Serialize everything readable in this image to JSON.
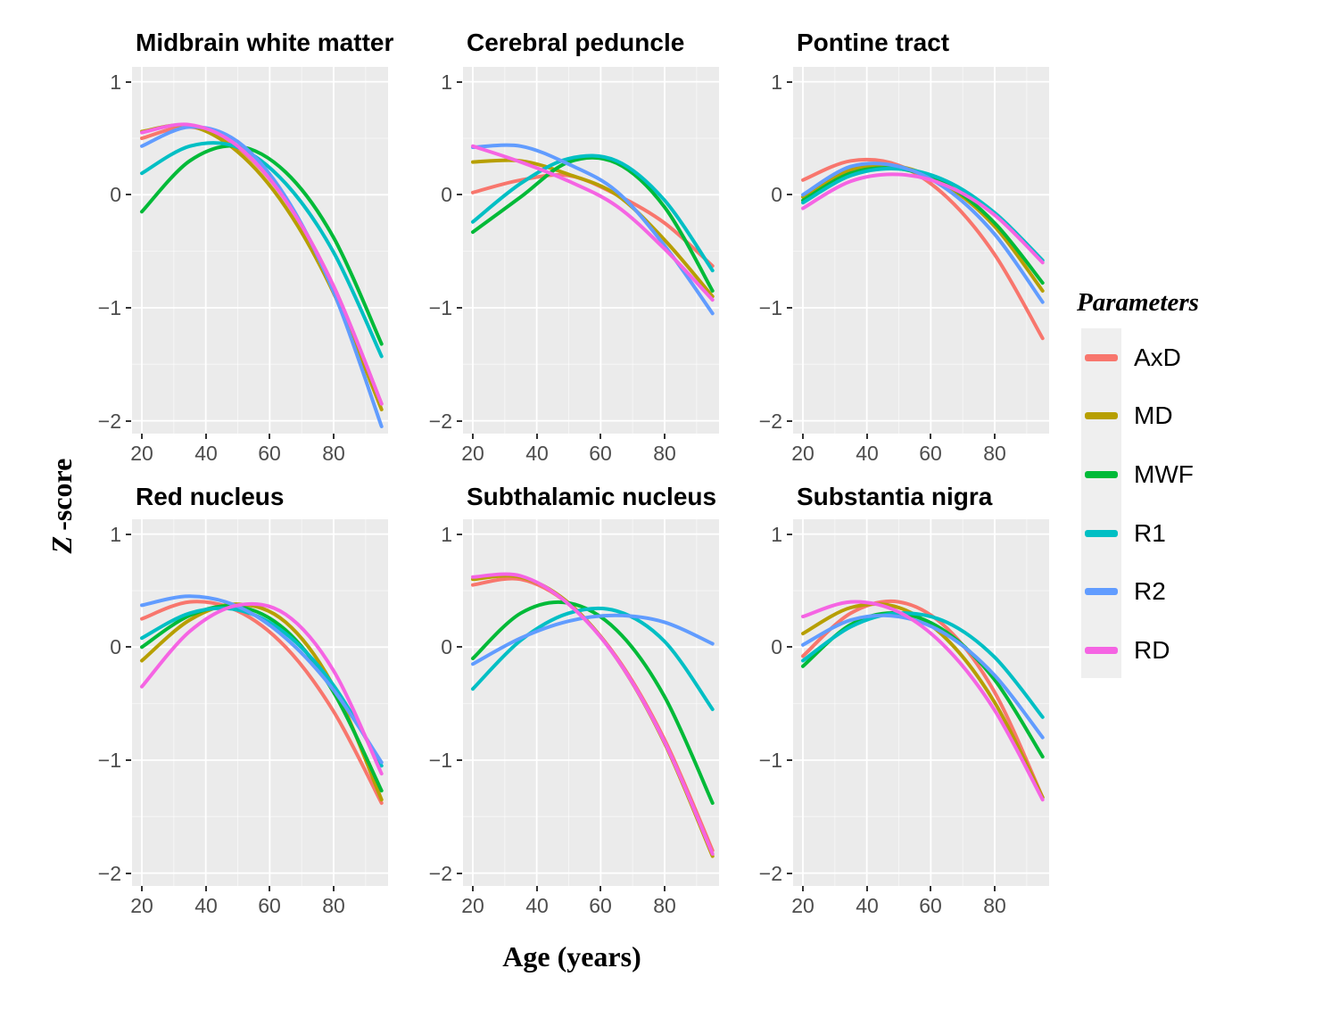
{
  "figure": {
    "y_axis_label_main": "Z",
    "y_axis_label_rest": "-score",
    "x_axis_label": "Age (years)"
  },
  "legend": {
    "title": "Parameters",
    "entries": [
      {
        "label": "AxD",
        "color": "#F8766D"
      },
      {
        "label": "MD",
        "color": "#B79F00"
      },
      {
        "label": "MWF",
        "color": "#00BA38"
      },
      {
        "label": "R1",
        "color": "#00BFC4"
      },
      {
        "label": "R2",
        "color": "#619CFF"
      },
      {
        "label": "RD",
        "color": "#F564E3"
      }
    ]
  },
  "style": {
    "panel_background": "#EBEBEB",
    "gridline_color": "#FFFFFF",
    "tick_label_color": "#4d4d4d"
  },
  "chart_data": [
    {
      "type": "line",
      "title": "Midbrain white matter",
      "xlabel": "Age (years)",
      "ylabel": "Z-score",
      "x": [
        20,
        35,
        50,
        65,
        80,
        95
      ],
      "x_ticks": [
        20,
        40,
        60,
        80
      ],
      "y_ticks": [
        1,
        0,
        -1,
        -2
      ],
      "xlim": [
        17,
        97
      ],
      "ylim": [
        -2.13,
        1.13
      ],
      "grid": true,
      "legend_position": "right",
      "series": [
        {
          "name": "AxD",
          "color": "#F8766D",
          "values": [
            0.5,
            0.6,
            0.42,
            -0.05,
            -0.81,
            -1.85
          ]
        },
        {
          "name": "MD",
          "color": "#B79F00",
          "values": [
            0.56,
            0.61,
            0.38,
            -0.11,
            -0.87,
            -1.9
          ]
        },
        {
          "name": "MWF",
          "color": "#00BA38",
          "values": [
            -0.15,
            0.3,
            0.43,
            0.2,
            -0.38,
            -1.32
          ]
        },
        {
          "name": "R1",
          "color": "#00BFC4",
          "values": [
            0.19,
            0.43,
            0.42,
            0.1,
            -0.51,
            -1.43
          ]
        },
        {
          "name": "R2",
          "color": "#619CFF",
          "values": [
            0.43,
            0.6,
            0.47,
            -0.02,
            -0.86,
            -2.05
          ]
        },
        {
          "name": "RD",
          "color": "#F564E3",
          "values": [
            0.55,
            0.62,
            0.43,
            -0.05,
            -0.81,
            -1.85
          ]
        }
      ]
    },
    {
      "type": "line",
      "title": "Cerebral peduncle",
      "xlabel": "Age (years)",
      "ylabel": "Z-score",
      "x": [
        20,
        35,
        50,
        65,
        80,
        95
      ],
      "x_ticks": [
        20,
        40,
        60,
        80
      ],
      "y_ticks": [
        1,
        0,
        -1,
        -2
      ],
      "xlim": [
        17,
        97
      ],
      "ylim": [
        -2.13,
        1.13
      ],
      "grid": true,
      "legend_position": "right",
      "series": [
        {
          "name": "AxD",
          "color": "#F8766D",
          "values": [
            0.02,
            0.13,
            0.17,
            0.0,
            -0.25,
            -0.63
          ]
        },
        {
          "name": "MD",
          "color": "#B79F00",
          "values": [
            0.29,
            0.3,
            0.18,
            0.0,
            -0.4,
            -0.9
          ]
        },
        {
          "name": "MWF",
          "color": "#00BA38",
          "values": [
            -0.33,
            -0.02,
            0.29,
            0.28,
            -0.11,
            -0.85
          ]
        },
        {
          "name": "R1",
          "color": "#00BFC4",
          "values": [
            -0.24,
            0.1,
            0.32,
            0.3,
            -0.05,
            -0.67
          ]
        },
        {
          "name": "R2",
          "color": "#619CFF",
          "values": [
            0.42,
            0.43,
            0.27,
            0.03,
            -0.45,
            -1.05
          ]
        },
        {
          "name": "RD",
          "color": "#F564E3",
          "values": [
            0.43,
            0.29,
            0.12,
            -0.1,
            -0.48,
            -0.93
          ]
        }
      ]
    },
    {
      "type": "line",
      "title": "Pontine tract",
      "xlabel": "Age (years)",
      "ylabel": "Z-score",
      "x": [
        20,
        35,
        50,
        65,
        80,
        95
      ],
      "x_ticks": [
        20,
        40,
        60,
        80
      ],
      "y_ticks": [
        1,
        0,
        -1,
        -2
      ],
      "xlim": [
        17,
        97
      ],
      "ylim": [
        -2.13,
        1.13
      ],
      "grid": true,
      "legend_position": "right",
      "series": [
        {
          "name": "AxD",
          "color": "#F8766D",
          "values": [
            0.13,
            0.3,
            0.26,
            -0.02,
            -0.53,
            -1.27
          ]
        },
        {
          "name": "MD",
          "color": "#B79F00",
          "values": [
            -0.02,
            0.22,
            0.25,
            0.08,
            -0.28,
            -0.85
          ]
        },
        {
          "name": "MWF",
          "color": "#00BA38",
          "values": [
            -0.05,
            0.19,
            0.23,
            0.09,
            -0.25,
            -0.78
          ]
        },
        {
          "name": "R1",
          "color": "#00BFC4",
          "values": [
            -0.07,
            0.17,
            0.23,
            0.12,
            -0.16,
            -0.58
          ]
        },
        {
          "name": "R2",
          "color": "#619CFF",
          "values": [
            0.0,
            0.25,
            0.25,
            0.05,
            -0.35,
            -0.95
          ]
        },
        {
          "name": "RD",
          "color": "#F564E3",
          "values": [
            -0.12,
            0.12,
            0.18,
            0.08,
            -0.18,
            -0.6
          ]
        }
      ]
    },
    {
      "type": "line",
      "title": "Red nucleus",
      "xlabel": "Age (years)",
      "ylabel": "Z-score",
      "x": [
        20,
        35,
        50,
        65,
        80,
        95
      ],
      "x_ticks": [
        20,
        40,
        60,
        80
      ],
      "y_ticks": [
        1,
        0,
        -1,
        -2
      ],
      "xlim": [
        17,
        97
      ],
      "ylim": [
        -2.13,
        1.13
      ],
      "grid": true,
      "legend_position": "right",
      "series": [
        {
          "name": "AxD",
          "color": "#F8766D",
          "values": [
            0.25,
            0.4,
            0.32,
            0.0,
            -0.57,
            -1.38
          ]
        },
        {
          "name": "MD",
          "color": "#B79F00",
          "values": [
            -0.12,
            0.24,
            0.38,
            0.22,
            -0.35,
            -1.35
          ]
        },
        {
          "name": "MWF",
          "color": "#00BA38",
          "values": [
            0.0,
            0.28,
            0.36,
            0.15,
            -0.4,
            -1.27
          ]
        },
        {
          "name": "R1",
          "color": "#00BFC4",
          "values": [
            0.08,
            0.3,
            0.33,
            0.12,
            -0.34,
            -1.05
          ]
        },
        {
          "name": "R2",
          "color": "#619CFF",
          "values": [
            0.37,
            0.45,
            0.36,
            0.08,
            -0.38,
            -1.02
          ]
        },
        {
          "name": "RD",
          "color": "#F564E3",
          "values": [
            -0.35,
            0.14,
            0.37,
            0.29,
            -0.21,
            -1.12
          ]
        }
      ]
    },
    {
      "type": "line",
      "title": "Subthalamic nucleus",
      "xlabel": "Age (years)",
      "ylabel": "Z-score",
      "x": [
        20,
        35,
        50,
        65,
        80,
        95
      ],
      "x_ticks": [
        20,
        40,
        60,
        80
      ],
      "y_ticks": [
        1,
        0,
        -1,
        -2
      ],
      "xlim": [
        17,
        97
      ],
      "ylim": [
        -2.13,
        1.13
      ],
      "grid": true,
      "legend_position": "right",
      "series": [
        {
          "name": "AxD",
          "color": "#F8766D",
          "values": [
            0.55,
            0.6,
            0.38,
            -0.09,
            -0.82,
            -1.8
          ]
        },
        {
          "name": "MD",
          "color": "#B79F00",
          "values": [
            0.6,
            0.62,
            0.39,
            -0.1,
            -0.85,
            -1.85
          ]
        },
        {
          "name": "MWF",
          "color": "#00BA38",
          "values": [
            -0.1,
            0.3,
            0.39,
            0.15,
            -0.44,
            -1.38
          ]
        },
        {
          "name": "R1",
          "color": "#00BFC4",
          "values": [
            -0.37,
            0.06,
            0.3,
            0.32,
            0.05,
            -0.55
          ]
        },
        {
          "name": "R2",
          "color": "#619CFF",
          "values": [
            -0.15,
            0.08,
            0.23,
            0.28,
            0.22,
            0.03
          ]
        },
        {
          "name": "RD",
          "color": "#F564E3",
          "values": [
            0.62,
            0.63,
            0.38,
            -0.1,
            -0.84,
            -1.83
          ]
        }
      ]
    },
    {
      "type": "line",
      "title": "Substantia nigra",
      "xlabel": "Age (years)",
      "ylabel": "Z-score",
      "x": [
        20,
        35,
        50,
        65,
        80,
        95
      ],
      "x_ticks": [
        20,
        40,
        60,
        80
      ],
      "y_ticks": [
        1,
        0,
        -1,
        -2
      ],
      "xlim": [
        17,
        97
      ],
      "ylim": [
        -2.13,
        1.13
      ],
      "grid": true,
      "legend_position": "right",
      "series": [
        {
          "name": "AxD",
          "color": "#F8766D",
          "values": [
            -0.08,
            0.3,
            0.4,
            0.17,
            -0.4,
            -1.33
          ]
        },
        {
          "name": "MD",
          "color": "#B79F00",
          "values": [
            0.12,
            0.35,
            0.35,
            0.07,
            -0.49,
            -1.33
          ]
        },
        {
          "name": "MWF",
          "color": "#00BA38",
          "values": [
            -0.17,
            0.2,
            0.3,
            0.13,
            -0.29,
            -0.97
          ]
        },
        {
          "name": "R1",
          "color": "#00BFC4",
          "values": [
            -0.12,
            0.18,
            0.3,
            0.22,
            -0.09,
            -0.62
          ]
        },
        {
          "name": "R2",
          "color": "#619CFF",
          "values": [
            0.02,
            0.24,
            0.27,
            0.11,
            -0.25,
            -0.8
          ]
        },
        {
          "name": "RD",
          "color": "#F564E3",
          "values": [
            0.27,
            0.4,
            0.31,
            -0.01,
            -0.56,
            -1.35
          ]
        }
      ]
    }
  ]
}
